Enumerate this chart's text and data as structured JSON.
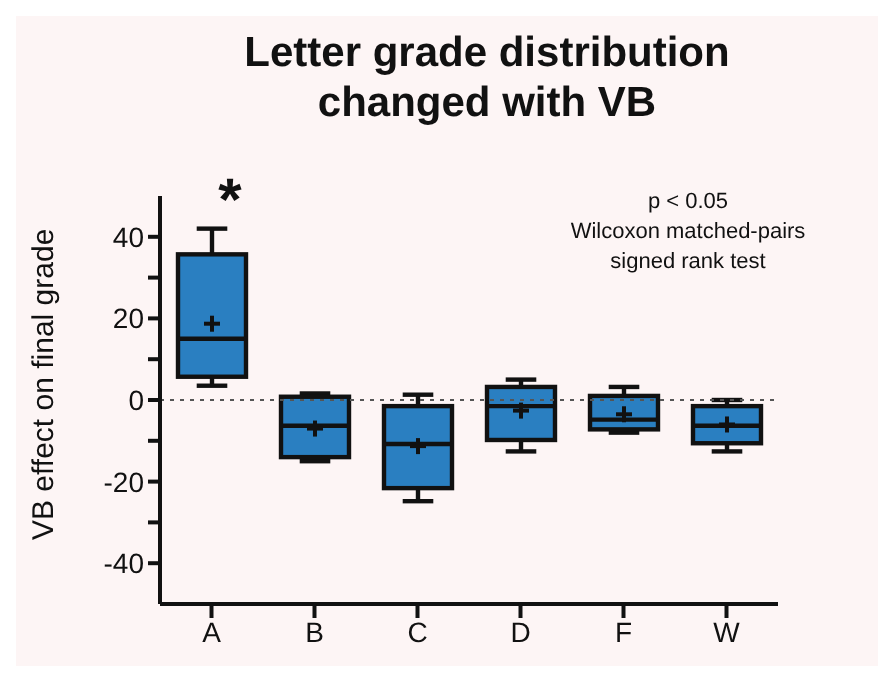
{
  "chart_data": {
    "type": "box",
    "title": "Letter grade distribution changed with VB",
    "ylabel": "VB effect on final grade",
    "categories": [
      "A",
      "B",
      "C",
      "D",
      "F",
      "W"
    ],
    "color": "#2a7fc1",
    "boxes": [
      {
        "low": 3.5,
        "q1": 5.7,
        "median": 15,
        "q3": 35.7,
        "high": 42,
        "mean": 18.7
      },
      {
        "low": -15,
        "q1": -14,
        "median": -6.3,
        "q3": 0.8,
        "high": 1.6,
        "mean": -7
      },
      {
        "low": -24.8,
        "q1": -21.6,
        "median": -10.8,
        "q3": -1.5,
        "high": 1.3,
        "mean": -11.3
      },
      {
        "low": -12.6,
        "q1": -9.8,
        "median": -1.5,
        "q3": 3.2,
        "high": 5,
        "mean": -2.6
      },
      {
        "low": -8,
        "q1": -7.2,
        "median": -4.8,
        "q3": 1,
        "high": 3.2,
        "mean": -3.5
      },
      {
        "low": -12.6,
        "q1": -10.6,
        "median": -6.3,
        "q3": -1.5,
        "high": 0,
        "mean": -6
      }
    ],
    "ylim": [
      -50,
      50
    ],
    "yticks": [
      -40,
      {
        "value": -30,
        "label": null
      },
      -20,
      {
        "value": -10,
        "label": null
      },
      0,
      {
        "value": 10,
        "label": null
      },
      20,
      {
        "value": 30,
        "label": null
      },
      40
    ],
    "ref_lines": [
      {
        "axis": "y",
        "value": 0,
        "line_style": "dotted",
        "color": "#555555"
      }
    ],
    "annotations": [
      "*",
      "p < 0.05",
      "Wilcoxon matched-pairs signed rank test"
    ],
    "grid": false,
    "legend": false
  }
}
